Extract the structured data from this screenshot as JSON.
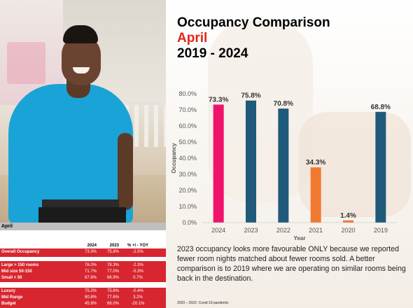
{
  "header": {
    "title": "Occupancy Comparison",
    "month": "April",
    "years": "2019 - 2024"
  },
  "table": {
    "section_label": "April",
    "columns": [
      "",
      "2024",
      "2023",
      "% +/ - YOY"
    ],
    "rows": [
      {
        "label": "Overall Occupancy",
        "v2024": "73.3%",
        "v2023": "75.8%",
        "yoy": "-2.5%"
      },
      {
        "label": "Large > 150 rooms",
        "v2024": "76.0%",
        "v2023": "78.3%",
        "yoy": "-2.3%"
      },
      {
        "label": "Mid size 50-150",
        "v2024": "71.7%",
        "v2023": "77.0%",
        "yoy": "-5.3%"
      },
      {
        "label": "Small < 50",
        "v2024": "67.6%",
        "v2023": "66.9%",
        "yoy": "0.7%"
      },
      {
        "label": "Luxury",
        "v2024": "75.2%",
        "v2023": "75.6%",
        "yoy": "-0.4%"
      },
      {
        "label": "Mid Range",
        "v2024": "80.8%",
        "v2023": "77.6%",
        "yoy": "3.2%"
      },
      {
        "label": "Budget",
        "v2024": "45.9%",
        "v2023": "66.0%",
        "yoy": "-20.1%"
      }
    ]
  },
  "chart_data": {
    "type": "bar",
    "categories": [
      "2024",
      "2023",
      "2022",
      "2021",
      "2020",
      "2019"
    ],
    "values": [
      73.3,
      75.8,
      70.8,
      34.3,
      1.4,
      68.8
    ],
    "data_labels": [
      "73.3%",
      "75.8%",
      "70.8%",
      "34.3%",
      "1.4%",
      "68.8%"
    ],
    "bar_colors": [
      "#f0136b",
      "#1f5a7a",
      "#1f5a7a",
      "#f07a30",
      "#f07a30",
      "#1f5a7a"
    ],
    "xlabel": "Year",
    "ylabel": "Occupancy",
    "ylim": [
      0,
      80
    ],
    "yticks": [
      0,
      10,
      20,
      30,
      40,
      50,
      60,
      70,
      80
    ],
    "ytick_labels": [
      "0.0%",
      "10.0%",
      "20.0%",
      "30.0%",
      "40.0%",
      "50.0%",
      "60.0%",
      "70.0%",
      "80.0%"
    ],
    "grid": false,
    "legend": "none"
  },
  "commentary": "2023 occupancy looks more favourable ONLY because we reported fewer room nights matched about fewer rooms sold.  A better comparison is to 2019 where we are operating on similar rooms being back in the destination.",
  "footnote": "2020 – 2022: Covid-19 pandemic",
  "colors": {
    "title": "#000000",
    "accent_red": "#e1261c",
    "table_red": "#d7262f"
  }
}
